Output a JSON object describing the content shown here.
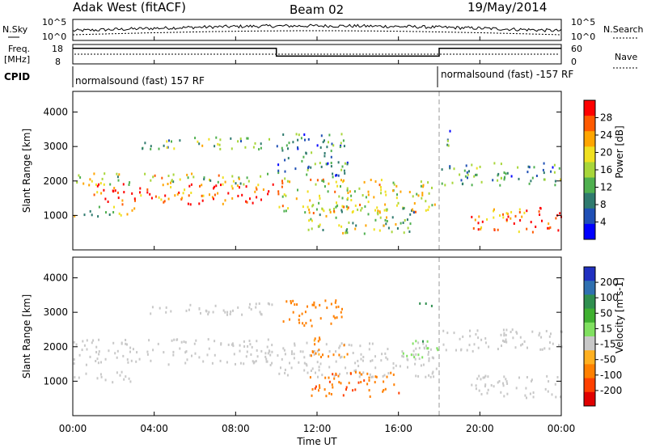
{
  "header": {
    "station": "Adak West (fitACF)",
    "beam": "Beam 02",
    "date": "19/May/2014"
  },
  "strip": {
    "nsky_label": "N.Sky",
    "nsearch_label": "N.Search",
    "noise_ticks_left": [
      "10^5",
      "10^0"
    ],
    "noise_ticks_right": [
      "10^5",
      "10^0"
    ],
    "freq_label_1": "Freq.",
    "freq_label_2": "[MHz]",
    "freq_ticks": [
      "18",
      "8"
    ],
    "nave_label": "Nave",
    "nave_ticks": [
      "60",
      "0"
    ],
    "cpid_label": "CPID",
    "cpid_1": "normalsound (fast) 157 RF",
    "cpid_2": "normalsound (fast) -157 RF",
    "freq_series": [
      {
        "t": 0.0,
        "mhz": 16.0
      },
      {
        "t": 10.0,
        "mhz": 12.0
      },
      {
        "t": 18.0,
        "mhz": 16.0
      },
      {
        "t": 24.0,
        "mhz": 16.0
      }
    ],
    "nave_level": 0.5
  },
  "axes": {
    "x_ticks": [
      "00:00",
      "04:00",
      "08:00",
      "12:00",
      "16:00",
      "20:00",
      "00:00"
    ],
    "xlabel": "Time UT",
    "ylabel": "Slant Range [km]",
    "y_ticks": [
      "1000",
      "2000",
      "3000",
      "4000"
    ]
  },
  "power_colorbar": {
    "label": "Power [dB]",
    "ticks": [
      "4",
      "8",
      "12",
      "16",
      "20",
      "24",
      "28"
    ],
    "colors": [
      "#0000ff",
      "#1f4fb5",
      "#2f7a6e",
      "#4fb04f",
      "#a8d63a",
      "#f0e020",
      "#ffa500",
      "#ff5a00",
      "#ff0000"
    ]
  },
  "velocity_colorbar": {
    "label": "Velocity [m s-1]",
    "ticks": [
      "200",
      "100",
      "50",
      "15",
      "-15",
      "-50",
      "-100",
      "-200"
    ],
    "colors": [
      "#2030c0",
      "#2f70b0",
      "#2f8f4f",
      "#3fb030",
      "#80e060",
      "#c8c8c8",
      "#ffb020",
      "#ff8000",
      "#ff4000",
      "#e00000"
    ]
  },
  "chart_data": {
    "type": "heatmap",
    "x_unit": "hours UT",
    "xlim": [
      0,
      24
    ],
    "ylim": [
      0,
      4600
    ],
    "power_bands": [
      {
        "t0": 0.0,
        "t1": 9.9,
        "r0": 1900,
        "r1": 2250,
        "level": 0.55
      },
      {
        "t0": 1.0,
        "t1": 9.9,
        "r0": 1350,
        "r1": 1950,
        "level": 0.85
      },
      {
        "t0": 3.3,
        "t1": 9.9,
        "r0": 2950,
        "r1": 3300,
        "level": 0.45
      },
      {
        "t0": 0.0,
        "t1": 3.0,
        "r0": 1000,
        "r1": 1300,
        "level": 0.5
      },
      {
        "t0": 10.0,
        "t1": 17.9,
        "r0": 1100,
        "r1": 2100,
        "level": 0.6
      },
      {
        "t0": 10.0,
        "t1": 13.5,
        "r0": 2100,
        "r1": 3400,
        "level": 0.3
      },
      {
        "t0": 11.5,
        "t1": 16.8,
        "r0": 500,
        "r1": 1350,
        "level": 0.45
      },
      {
        "t0": 18.0,
        "t1": 24.0,
        "r0": 1900,
        "r1": 2550,
        "level": 0.35
      },
      {
        "t0": 18.0,
        "t1": 18.6,
        "r0": 3000,
        "r1": 3500,
        "level": 0.3
      },
      {
        "t0": 19.5,
        "t1": 24.0,
        "r0": 550,
        "r1": 1250,
        "level": 0.8
      }
    ],
    "velocity_bands": [
      {
        "t0": 0.0,
        "t1": 9.9,
        "r0": 1500,
        "r1": 2250,
        "v": 0
      },
      {
        "t0": 3.3,
        "t1": 9.9,
        "r0": 2950,
        "r1": 3300,
        "v": 0
      },
      {
        "t0": 0.0,
        "t1": 3.0,
        "r0": 1000,
        "r1": 1300,
        "v": 0
      },
      {
        "t0": 10.0,
        "t1": 17.9,
        "r0": 1150,
        "r1": 2150,
        "v": 0
      },
      {
        "t0": 11.5,
        "t1": 13.5,
        "r0": 1700,
        "r1": 2300,
        "v": -60
      },
      {
        "t0": 10.3,
        "t1": 13.3,
        "r0": 2600,
        "r1": 3400,
        "v": -80
      },
      {
        "t0": 11.5,
        "t1": 16.0,
        "r0": 550,
        "r1": 1300,
        "v": -90
      },
      {
        "t0": 16.2,
        "t1": 17.9,
        "r0": 1700,
        "r1": 2200,
        "v": 40
      },
      {
        "t0": 17.0,
        "t1": 17.6,
        "r0": 3200,
        "r1": 3500,
        "v": 60
      },
      {
        "t0": 18.0,
        "t1": 24.0,
        "r0": 1900,
        "r1": 2550,
        "v": 0
      },
      {
        "t0": 19.5,
        "t1": 24.0,
        "r0": 550,
        "r1": 1200,
        "v": 0
      }
    ]
  }
}
